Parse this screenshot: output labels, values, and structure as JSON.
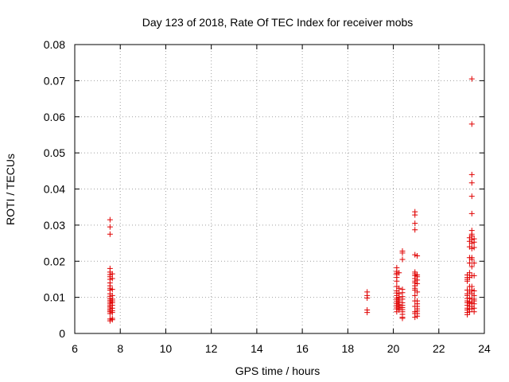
{
  "chart_data": {
    "type": "scatter",
    "title": "Day 123 of 2018, Rate Of TEC Index for receiver mobs",
    "xlabel": "GPS time / hours",
    "ylabel": "ROTI / TECUs",
    "xlim": [
      6,
      24
    ],
    "ylim": [
      0,
      0.08
    ],
    "xticks": [
      "6",
      "8",
      "10",
      "12",
      "14",
      "16",
      "18",
      "20",
      "22",
      "24"
    ],
    "yticks": [
      "0",
      "0.01",
      "0.02",
      "0.03",
      "0.04",
      "0.05",
      "0.06",
      "0.07",
      "0.08"
    ],
    "grid": true,
    "marker": "plus",
    "color": "#e00000",
    "series": [
      {
        "x": [
          7.55,
          7.55,
          7.55,
          7.55,
          7.55,
          7.55,
          7.55,
          7.55,
          7.55,
          7.55,
          7.55,
          7.55,
          7.55,
          7.55,
          7.55,
          7.55,
          7.55,
          7.55,
          7.55,
          7.55,
          7.55,
          7.55,
          7.55,
          7.55,
          7.55,
          7.55,
          7.65,
          7.65,
          7.65,
          7.65,
          7.65,
          7.65,
          7.65,
          7.65,
          7.65,
          7.65,
          7.65,
          7.65,
          7.65,
          18.85,
          18.85,
          18.85,
          18.85,
          18.85,
          20.15,
          20.15,
          20.15,
          20.15,
          20.15,
          20.15,
          20.15,
          20.15,
          20.15,
          20.15,
          20.15,
          20.15,
          20.15,
          20.15,
          20.15,
          20.15,
          20.15,
          20.15,
          20.25,
          20.25,
          20.25,
          20.25,
          20.25,
          20.25,
          20.25,
          20.25,
          20.25,
          20.25,
          20.25,
          20.4,
          20.4,
          20.4,
          20.4,
          20.4,
          20.4,
          20.4,
          20.4,
          20.4,
          20.4,
          20.4,
          20.4,
          20.4,
          20.4,
          20.4,
          20.95,
          20.95,
          20.95,
          20.95,
          20.95,
          20.95,
          20.95,
          20.95,
          20.95,
          20.95,
          20.95,
          20.95,
          20.95,
          20.95,
          20.95,
          20.95,
          20.95,
          20.95,
          20.95,
          20.95,
          21.05,
          21.05,
          21.05,
          21.05,
          21.05,
          21.05,
          21.05,
          21.05,
          21.05,
          21.05,
          21.05,
          21.05,
          21.05,
          23.25,
          23.25,
          23.25,
          23.25,
          23.25,
          23.25,
          23.25,
          23.25,
          23.25,
          23.25,
          23.25,
          23.25,
          23.25,
          23.25,
          23.25,
          23.35,
          23.35,
          23.35,
          23.35,
          23.35,
          23.35,
          23.35,
          23.35,
          23.35,
          23.35,
          23.35,
          23.35,
          23.35,
          23.35,
          23.35,
          23.45,
          23.45,
          23.45,
          23.45,
          23.45,
          23.45,
          23.45,
          23.45,
          23.45,
          23.45,
          23.45,
          23.45,
          23.45,
          23.45,
          23.45,
          23.45,
          23.45,
          23.45,
          23.45,
          23.45,
          23.45,
          23.45,
          23.45,
          23.55,
          23.55,
          23.55,
          23.55,
          23.55,
          23.55,
          23.55,
          23.55,
          23.55,
          23.55,
          23.55,
          23.55
        ],
        "y": [
          0.0315,
          0.0295,
          0.0275,
          0.018,
          0.017,
          0.0163,
          0.0157,
          0.015,
          0.014,
          0.0132,
          0.0125,
          0.012,
          0.011,
          0.0103,
          0.0097,
          0.0092,
          0.0087,
          0.0082,
          0.0077,
          0.0073,
          0.0068,
          0.0064,
          0.006,
          0.0055,
          0.004,
          0.0035,
          0.0165,
          0.0152,
          0.0122,
          0.0105,
          0.0095,
          0.009,
          0.0085,
          0.0078,
          0.007,
          0.0063,
          0.0058,
          0.0042,
          0.0038,
          0.0115,
          0.0105,
          0.0098,
          0.0065,
          0.0058,
          0.0182,
          0.0172,
          0.0167,
          0.0163,
          0.0155,
          0.0145,
          0.013,
          0.0118,
          0.0112,
          0.0105,
          0.0098,
          0.0093,
          0.0088,
          0.0083,
          0.0078,
          0.0073,
          0.0068,
          0.006,
          0.0168,
          0.0125,
          0.011,
          0.01,
          0.0095,
          0.009,
          0.0085,
          0.008,
          0.0075,
          0.007,
          0.0065,
          0.0228,
          0.0223,
          0.0205,
          0.0122,
          0.0113,
          0.0102,
          0.0095,
          0.0085,
          0.0078,
          0.0072,
          0.0066,
          0.006,
          0.0053,
          0.0045,
          0.0042,
          0.0337,
          0.0328,
          0.0305,
          0.0287,
          0.0218,
          0.017,
          0.0165,
          0.016,
          0.0152,
          0.0145,
          0.014,
          0.0132,
          0.0125,
          0.012,
          0.0105,
          0.009,
          0.0075,
          0.006,
          0.0055,
          0.0045,
          0.0215,
          0.0162,
          0.0157,
          0.0148,
          0.0138,
          0.0115,
          0.009,
          0.0082,
          0.0075,
          0.0068,
          0.0062,
          0.0055,
          0.0048,
          0.0162,
          0.0155,
          0.015,
          0.0145,
          0.012,
          0.011,
          0.0105,
          0.0097,
          0.009,
          0.0085,
          0.0078,
          0.007,
          0.0065,
          0.0058,
          0.0052,
          0.0265,
          0.0255,
          0.024,
          0.021,
          0.0195,
          0.0168,
          0.0155,
          0.013,
          0.0115,
          0.0098,
          0.0088,
          0.0082,
          0.0075,
          0.0068,
          0.006,
          0.0705,
          0.058,
          0.044,
          0.0417,
          0.038,
          0.0332,
          0.0285,
          0.0275,
          0.027,
          0.026,
          0.025,
          0.0235,
          0.021,
          0.0205,
          0.0185,
          0.016,
          0.013,
          0.012,
          0.011,
          0.0095,
          0.0085,
          0.0075,
          0.0068,
          0.0262,
          0.0253,
          0.0238,
          0.0195,
          0.016,
          0.0118,
          0.0105,
          0.0095,
          0.009,
          0.0082,
          0.007,
          0.006
        ]
      }
    ]
  }
}
